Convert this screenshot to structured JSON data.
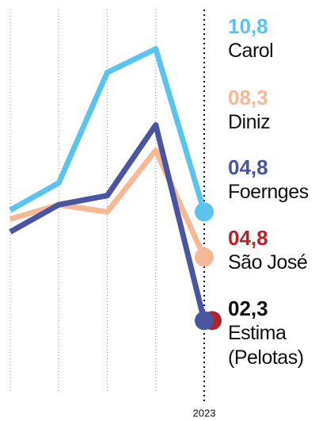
{
  "chart_data": {
    "type": "line",
    "categories": [
      null,
      null,
      null,
      null,
      "2023"
    ],
    "ylim": [
      0,
      22.5
    ],
    "series": [
      {
        "name": "Carol",
        "color": "#5bc4ee",
        "values": [
          10.9,
          12.4,
          18.5,
          19.8,
          10.8
        ],
        "value_labels": [
          null,
          null,
          null,
          null,
          "10,8"
        ]
      },
      {
        "name": "Diniz",
        "color": "#f7b896",
        "values": [
          10.4,
          11.2,
          10.8,
          14.2,
          8.3
        ],
        "value_labels": [
          null,
          null,
          null,
          null,
          "08,3"
        ]
      },
      {
        "name": "Foernges",
        "color": "#4a55a2",
        "values": [
          9.7,
          11.2,
          11.7,
          15.6,
          4.8
        ],
        "value_labels": [
          null,
          null,
          null,
          null,
          "04,8"
        ]
      },
      {
        "name": "São José",
        "color": "#b5232a",
        "values": [
          null,
          null,
          null,
          null,
          4.8
        ],
        "value_labels": [
          null,
          null,
          null,
          null,
          "04,8"
        ]
      },
      {
        "name": "Estima (Pelotas)",
        "color": "#111111",
        "values": [
          null,
          null,
          null,
          null,
          2.3
        ],
        "value_labels": [
          null,
          null,
          null,
          null,
          "02,3"
        ]
      }
    ]
  }
}
